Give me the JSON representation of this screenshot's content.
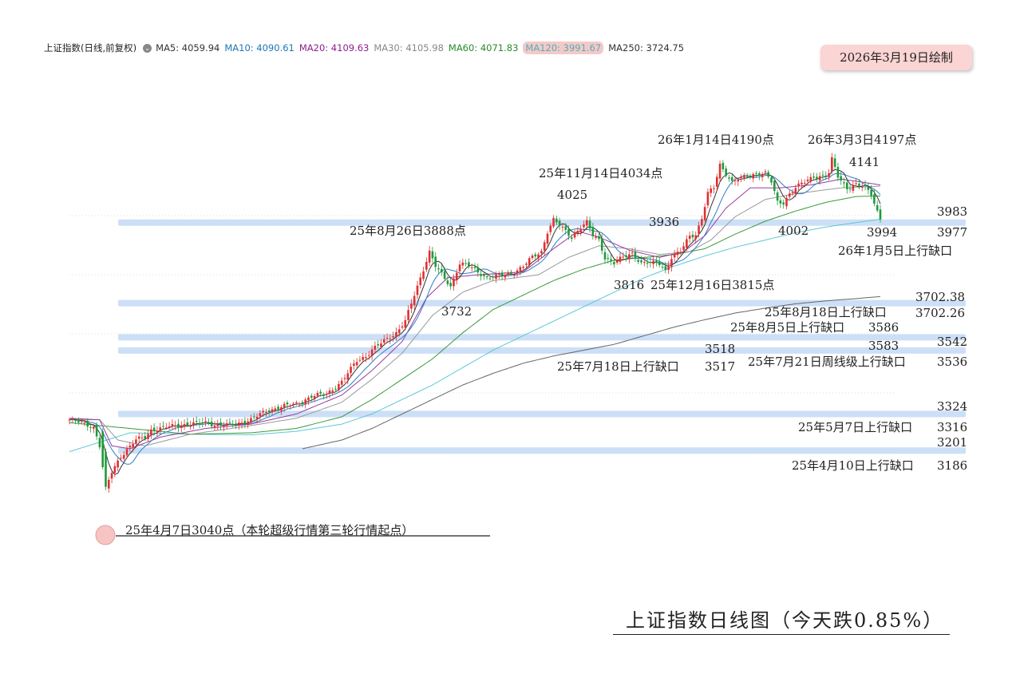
{
  "header": {
    "symbol": "上证指数(日线,前复权)",
    "ma": [
      {
        "label": "MA5: 4059.94",
        "color": "#333333"
      },
      {
        "label": "MA10: 4090.61",
        "color": "#1f77b4"
      },
      {
        "label": "MA20: 4109.63",
        "color": "#8e1f8e"
      },
      {
        "label": "MA30: 4105.98",
        "color": "#888888"
      },
      {
        "label": "MA60: 4071.83",
        "color": "#2a8a2a"
      },
      {
        "label": "MA120: 3991.67",
        "color": "#4fb0b8"
      },
      {
        "label": "MA250: 3724.75",
        "color": "#333333"
      }
    ],
    "highlight_index": 5
  },
  "date_badge": "2026年3月19日绘制",
  "footer_title": "上证指数日线图（今天跌0.85%）",
  "chart_data": {
    "type": "candlestick",
    "title": "上证指数日线图（今天跌0.85%）",
    "series_names": [
      "MA5",
      "MA10",
      "MA20",
      "MA30",
      "MA60",
      "MA120",
      "MA250"
    ],
    "ylim": [
      3000,
      4260
    ],
    "key_points": [
      {
        "date": "2025-04-07",
        "value": 3040
      },
      {
        "date": "2025-07-18",
        "value": 3518
      },
      {
        "date": "2025-08-26",
        "value": 3888
      },
      {
        "date": "2025-11-14",
        "value": 4034
      },
      {
        "date": "2025-12-16",
        "value": 3815
      },
      {
        "date": "2026-01-14",
        "value": 4190
      },
      {
        "date": "2026-03-03",
        "value": 4197
      },
      {
        "date": "2026-03-19",
        "value": 3994
      }
    ],
    "gaps": [
      {
        "label": "26年1月5日上行缺口",
        "top": 3983,
        "bottom": 3977
      },
      {
        "label": "25年8月18日上行缺口",
        "top": 3702.38,
        "bottom": 3702.26
      },
      {
        "label": "25年8月5日上行缺口",
        "top": 3586,
        "bottom": 3583
      },
      {
        "label": "25年7月21日周线级上行缺口",
        "top": 3542,
        "bottom": 3536
      },
      {
        "label": "25年5月7日上行缺口",
        "top": 3324,
        "bottom": 3316
      },
      {
        "label": "25年4月10日上行缺口",
        "top": 3201,
        "bottom": 3186
      }
    ],
    "annotations": {
      "a_4025": "4025",
      "a_nov14": "25年11月14日4034点",
      "a_jan14": "26年1月14日4190点",
      "a_mar3": "26年3月3日4197点",
      "a_4141": "4141",
      "a_aug26": "25年8月26日3888点",
      "a_3936": "3936",
      "a_4002": "4002",
      "a_3994": "3994",
      "a_3816": "3816",
      "a_dec16": "25年12月16日3815点",
      "a_3732": "3732",
      "a_3518": "3518",
      "a_3517": "3517",
      "a_jul18": "25年7月18日上行缺口",
      "a_apr7": "25年4月7日3040点（本轮超级行情第三轮行情起点）",
      "gap_jan5_top": "3983",
      "gap_jan5_bot": "3977",
      "gap_jan5_lbl": "26年1月5日上行缺口",
      "gap_aug18_top": "3702.38",
      "gap_aug18_bot": "3702.26",
      "gap_aug18_lbl": "25年8月18日上行缺口",
      "gap_aug5_val": "3586",
      "gap_aug5_val2": "3583",
      "gap_aug5_lbl": "25年8月5日上行缺口",
      "gap_jul21_top": "3542",
      "gap_jul21_bot": "3536",
      "gap_jul21_lbl": "25年7月21日周线级上行缺口",
      "gap_may7_top": "3324",
      "gap_may7_bot": "3316",
      "gap_may7_lbl": "25年5月7日上行缺口",
      "gap_apr10_top": "3201",
      "gap_apr10_bot": "3186",
      "gap_apr10_lbl": "25年4月10日上行缺口"
    },
    "path_anchors": {
      "close": [
        [
          0,
          3300
        ],
        [
          4,
          3290
        ],
        [
          8,
          3275
        ],
        [
          10,
          3210
        ],
        [
          12,
          3060
        ],
        [
          14,
          3120
        ],
        [
          17,
          3175
        ],
        [
          22,
          3230
        ],
        [
          25,
          3240
        ],
        [
          27,
          3265
        ],
        [
          30,
          3270
        ],
        [
          35,
          3280
        ],
        [
          40,
          3285
        ],
        [
          45,
          3290
        ],
        [
          50,
          3280
        ],
        [
          55,
          3285
        ],
        [
          60,
          3300
        ],
        [
          65,
          3330
        ],
        [
          70,
          3345
        ],
        [
          75,
          3355
        ],
        [
          80,
          3380
        ],
        [
          85,
          3390
        ],
        [
          90,
          3430
        ],
        [
          95,
          3505
        ],
        [
          98,
          3520
        ],
        [
          100,
          3540
        ],
        [
          105,
          3580
        ],
        [
          108,
          3600
        ],
        [
          111,
          3640
        ],
        [
          113,
          3700
        ],
        [
          116,
          3790
        ],
        [
          119,
          3880
        ],
        [
          121,
          3830
        ],
        [
          123,
          3800
        ],
        [
          126,
          3760
        ],
        [
          129,
          3840
        ],
        [
          132,
          3830
        ],
        [
          135,
          3810
        ],
        [
          138,
          3790
        ],
        [
          141,
          3795
        ],
        [
          144,
          3800
        ],
        [
          147,
          3810
        ],
        [
          150,
          3830
        ],
        [
          153,
          3860
        ],
        [
          156,
          3880
        ],
        [
          158,
          3950
        ],
        [
          160,
          3990
        ],
        [
          163,
          3960
        ],
        [
          166,
          3930
        ],
        [
          169,
          3965
        ],
        [
          171,
          3980
        ],
        [
          173,
          3935
        ],
        [
          175,
          3920
        ],
        [
          177,
          3860
        ],
        [
          180,
          3840
        ],
        [
          183,
          3860
        ],
        [
          186,
          3875
        ],
        [
          189,
          3840
        ],
        [
          192,
          3840
        ],
        [
          195,
          3840
        ],
        [
          197,
          3815
        ],
        [
          199,
          3860
        ],
        [
          202,
          3880
        ],
        [
          205,
          3935
        ],
        [
          207,
          3940
        ],
        [
          209,
          3995
        ],
        [
          211,
          4080
        ],
        [
          213,
          4100
        ],
        [
          215,
          4180
        ],
        [
          217,
          4150
        ],
        [
          219,
          4120
        ],
        [
          221,
          4130
        ],
        [
          224,
          4140
        ],
        [
          227,
          4150
        ],
        [
          230,
          4150
        ],
        [
          232,
          4120
        ],
        [
          234,
          4050
        ],
        [
          236,
          4050
        ],
        [
          238,
          4080
        ],
        [
          240,
          4100
        ],
        [
          243,
          4120
        ],
        [
          246,
          4140
        ],
        [
          249,
          4140
        ],
        [
          251,
          4150
        ],
        [
          252,
          4197
        ],
        [
          254,
          4140
        ],
        [
          257,
          4100
        ],
        [
          260,
          4110
        ],
        [
          263,
          4100
        ],
        [
          265,
          4080
        ],
        [
          267,
          4020
        ],
        [
          268,
          3994
        ]
      ],
      "ma20": [
        [
          0,
          3305
        ],
        [
          10,
          3300
        ],
        [
          14,
          3210
        ],
        [
          20,
          3200
        ],
        [
          30,
          3240
        ],
        [
          45,
          3270
        ],
        [
          60,
          3285
        ],
        [
          75,
          3320
        ],
        [
          90,
          3385
        ],
        [
          100,
          3470
        ],
        [
          110,
          3570
        ],
        [
          118,
          3720
        ],
        [
          125,
          3790
        ],
        [
          135,
          3800
        ],
        [
          150,
          3810
        ],
        [
          160,
          3890
        ],
        [
          168,
          3950
        ],
        [
          175,
          3930
        ],
        [
          185,
          3885
        ],
        [
          195,
          3860
        ],
        [
          203,
          3880
        ],
        [
          210,
          3935
        ],
        [
          217,
          4030
        ],
        [
          225,
          4100
        ],
        [
          235,
          4100
        ],
        [
          245,
          4110
        ],
        [
          255,
          4130
        ],
        [
          262,
          4120
        ],
        [
          268,
          4110
        ]
      ],
      "ma30": [
        [
          0,
          3300
        ],
        [
          10,
          3300
        ],
        [
          16,
          3230
        ],
        [
          25,
          3210
        ],
        [
          40,
          3250
        ],
        [
          60,
          3280
        ],
        [
          75,
          3305
        ],
        [
          90,
          3360
        ],
        [
          100,
          3440
        ],
        [
          110,
          3530
        ],
        [
          120,
          3660
        ],
        [
          130,
          3740
        ],
        [
          140,
          3780
        ],
        [
          155,
          3800
        ],
        [
          165,
          3860
        ],
        [
          175,
          3900
        ],
        [
          185,
          3890
        ],
        [
          195,
          3870
        ],
        [
          205,
          3880
        ],
        [
          212,
          3920
        ],
        [
          220,
          4000
        ],
        [
          230,
          4060
        ],
        [
          240,
          4080
        ],
        [
          255,
          4100
        ],
        [
          268,
          4106
        ]
      ],
      "ma60": [
        [
          0,
          3290
        ],
        [
          20,
          3270
        ],
        [
          40,
          3250
        ],
        [
          60,
          3255
        ],
        [
          75,
          3270
        ],
        [
          90,
          3310
        ],
        [
          100,
          3370
        ],
        [
          110,
          3440
        ],
        [
          120,
          3510
        ],
        [
          130,
          3600
        ],
        [
          140,
          3680
        ],
        [
          150,
          3730
        ],
        [
          160,
          3780
        ],
        [
          170,
          3820
        ],
        [
          180,
          3850
        ],
        [
          190,
          3860
        ],
        [
          200,
          3870
        ],
        [
          210,
          3890
        ],
        [
          220,
          3940
        ],
        [
          230,
          3985
        ],
        [
          240,
          4020
        ],
        [
          250,
          4050
        ],
        [
          260,
          4070
        ],
        [
          268,
          4072
        ]
      ],
      "ma120": [
        [
          0,
          3190
        ],
        [
          20,
          3255
        ],
        [
          40,
          3250
        ],
        [
          60,
          3248
        ],
        [
          75,
          3260
        ],
        [
          90,
          3285
        ],
        [
          100,
          3320
        ],
        [
          110,
          3370
        ],
        [
          120,
          3420
        ],
        [
          130,
          3480
        ],
        [
          140,
          3540
        ],
        [
          150,
          3590
        ],
        [
          160,
          3640
        ],
        [
          170,
          3690
        ],
        [
          180,
          3740
        ],
        [
          190,
          3790
        ],
        [
          200,
          3830
        ],
        [
          210,
          3865
        ],
        [
          220,
          3895
        ],
        [
          230,
          3920
        ],
        [
          240,
          3945
        ],
        [
          250,
          3965
        ],
        [
          260,
          3980
        ],
        [
          268,
          3992
        ]
      ],
      "ma250": [
        [
          77,
          3200
        ],
        [
          90,
          3230
        ],
        [
          100,
          3270
        ],
        [
          110,
          3320
        ],
        [
          120,
          3370
        ],
        [
          130,
          3420
        ],
        [
          140,
          3460
        ],
        [
          150,
          3495
        ],
        [
          160,
          3520
        ],
        [
          170,
          3540
        ],
        [
          180,
          3560
        ],
        [
          190,
          3590
        ],
        [
          200,
          3620
        ],
        [
          210,
          3645
        ],
        [
          220,
          3668
        ],
        [
          230,
          3685
        ],
        [
          240,
          3700
        ],
        [
          250,
          3710
        ],
        [
          260,
          3718
        ],
        [
          268,
          3725
        ]
      ]
    }
  }
}
